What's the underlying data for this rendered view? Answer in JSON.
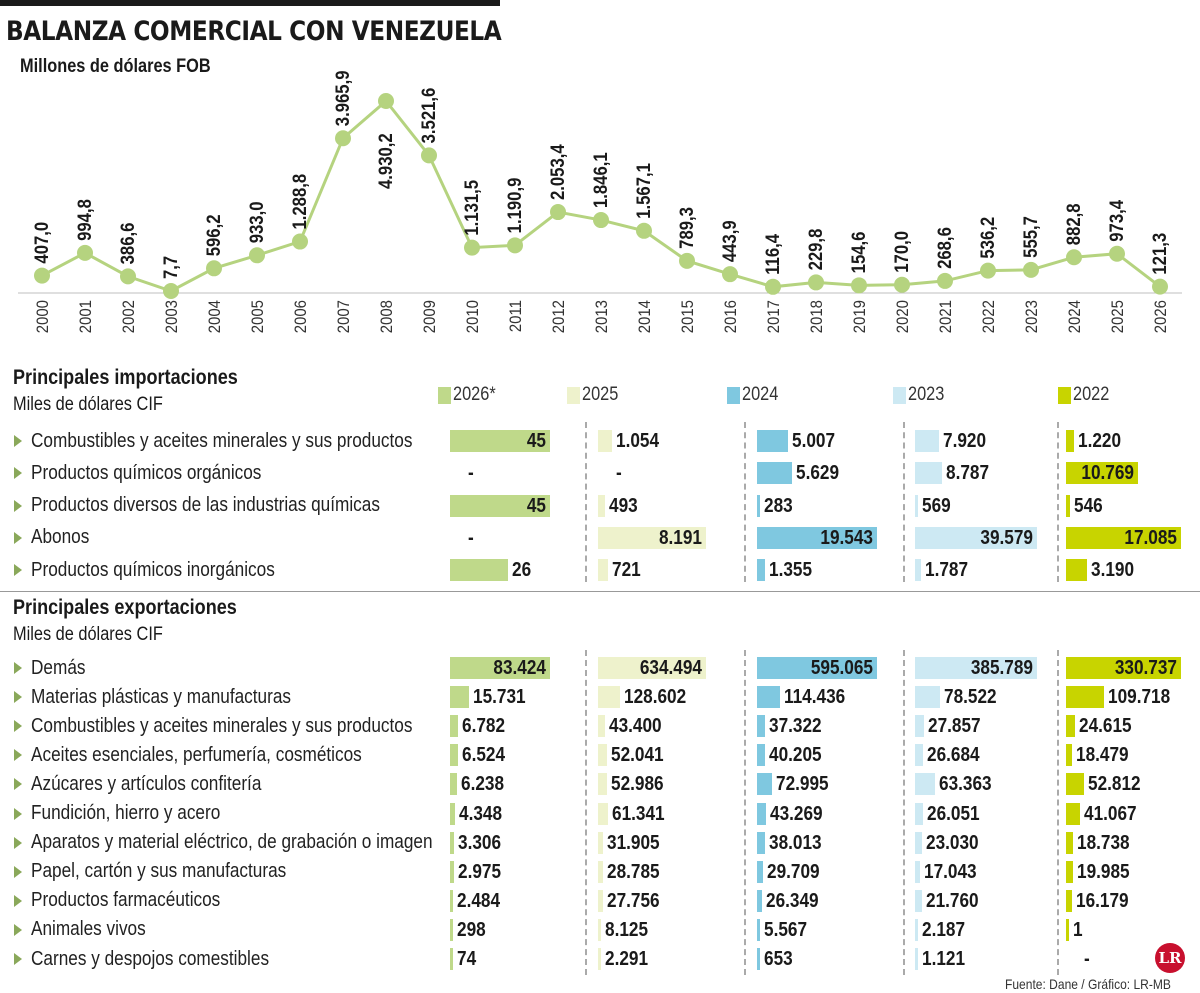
{
  "title": "BALANZA COMERCIAL CON VENEZUELA",
  "subtitle": "Millones de dólares FOB",
  "chart_data": [
    {
      "type": "line",
      "title": "BALANZA COMERCIAL CON VENEZUELA",
      "ylabel": "Millones de dólares FOB",
      "x": [
        "2000",
        "2001",
        "2002",
        "2003",
        "2004",
        "2005",
        "2006",
        "2007",
        "2008",
        "2009",
        "2010",
        "2011",
        "2012",
        "2013",
        "2014",
        "2015",
        "2016",
        "2017",
        "2018",
        "2019",
        "2020",
        "2021",
        "2022",
        "2023",
        "2024",
        "2025",
        "2026"
      ],
      "values": [
        407.0,
        994.8,
        386.6,
        7.7,
        596.2,
        933.0,
        1288.8,
        3965.9,
        4930.2,
        3521.6,
        1131.5,
        1190.9,
        2053.4,
        1846.1,
        1567.1,
        789.3,
        443.9,
        116.4,
        229.8,
        154.6,
        170.0,
        268.6,
        536.2,
        555.7,
        882.8,
        973.4,
        121.3
      ],
      "labels": [
        "407,0",
        "994,8",
        "386,6",
        "7,7",
        "596,2",
        "933,0",
        "1.288,8",
        "3.965,9",
        "4.930,2",
        "3.521,6",
        "1.131,5",
        "1.190,9",
        "2.053,4",
        "1.846,1",
        "1.567,1",
        "789,3",
        "443,9",
        "116,4",
        "229,8",
        "154,6",
        "170,0",
        "268,6",
        "536,2",
        "555,7",
        "882,8",
        "973,4",
        "121,3"
      ],
      "color": "#b5d37f"
    },
    {
      "type": "bar",
      "title": "Principales importaciones",
      "unit": "Miles de dólares CIF",
      "series_names": [
        "2026*",
        "2025",
        "2024",
        "2023",
        "2022"
      ],
      "colors": [
        "#bfd98a",
        "#eef2cc",
        "#7fc8e0",
        "#cde9f3",
        "#c8d400"
      ],
      "categories": [
        "Combustibles y aceites minerales y sus productos",
        "Productos químicos orgánicos",
        "Productos diversos de las industrias químicas",
        "Abonos",
        "Productos químicos inorgánicos"
      ],
      "values": [
        [
          45,
          1054,
          5007,
          7920,
          1220
        ],
        [
          null,
          null,
          5629,
          8787,
          10769
        ],
        [
          45,
          493,
          283,
          569,
          546
        ],
        [
          null,
          8191,
          19543,
          39579,
          17085
        ],
        [
          26,
          721,
          1355,
          1787,
          3190
        ]
      ],
      "labels": [
        [
          "45",
          "1.054",
          "5.007",
          "7.920",
          "1.220"
        ],
        [
          "-",
          "-",
          "5.629",
          "8.787",
          "10.769"
        ],
        [
          "45",
          "493",
          "283",
          "569",
          "546"
        ],
        [
          "-",
          "8.191",
          "19.543",
          "39.579",
          "17.085"
        ],
        [
          "26",
          "721",
          "1.355",
          "1.787",
          "3.190"
        ]
      ]
    },
    {
      "type": "bar",
      "title": "Principales exportaciones",
      "unit": "Miles de dólares CIF",
      "categories": [
        "Demás",
        "Materias plásticas y manufacturas",
        "Combustibles y aceites minerales y sus productos",
        "Aceites esenciales, perfumería, cosméticos",
        "Azúcares y artículos confitería",
        "Fundición, hierro y acero",
        "Aparatos y material eléctrico, de grabación o imagen",
        "Papel, cartón y sus manufacturas",
        "Productos farmacéuticos",
        "Animales vivos",
        "Carnes y despojos comestibles"
      ],
      "values": [
        [
          83424,
          634494,
          595065,
          385789,
          330737
        ],
        [
          15731,
          128602,
          114436,
          78522,
          109718
        ],
        [
          6782,
          43400,
          37322,
          27857,
          24615
        ],
        [
          6524,
          52041,
          40205,
          26684,
          18479
        ],
        [
          6238,
          52986,
          72995,
          63363,
          52812
        ],
        [
          4348,
          61341,
          43269,
          26051,
          41067
        ],
        [
          3306,
          31905,
          38013,
          23030,
          18738
        ],
        [
          2975,
          28785,
          29709,
          17043,
          19985
        ],
        [
          2484,
          27756,
          26349,
          21760,
          16179
        ],
        [
          298,
          8125,
          5567,
          2187,
          1
        ],
        [
          74,
          2291,
          653,
          1121,
          null
        ]
      ],
      "labels": [
        [
          "83.424",
          "634.494",
          "595.065",
          "385.789",
          "330.737"
        ],
        [
          "15.731",
          "128.602",
          "114.436",
          "78.522",
          "109.718"
        ],
        [
          "6.782",
          "43.400",
          "37.322",
          "27.857",
          "24.615"
        ],
        [
          "6.524",
          "52.041",
          "40.205",
          "26.684",
          "18.479"
        ],
        [
          "6.238",
          "52.986",
          "72.995",
          "63.363",
          "52.812"
        ],
        [
          "4.348",
          "61.341",
          "43.269",
          "26.051",
          "41.067"
        ],
        [
          "3.306",
          "31.905",
          "38.013",
          "23.030",
          "18.738"
        ],
        [
          "2.975",
          "28.785",
          "29.709",
          "17.043",
          "19.985"
        ],
        [
          "2.484",
          "27.756",
          "26.349",
          "21.760",
          "16.179"
        ],
        [
          "298",
          "8.125",
          "5.567",
          "2.187",
          "1"
        ],
        [
          "74",
          "2.291",
          "653",
          "1.121",
          "-"
        ]
      ]
    }
  ],
  "source": "Fuente: Dane / Gráfico: LR-MB",
  "logo_text": "LR"
}
